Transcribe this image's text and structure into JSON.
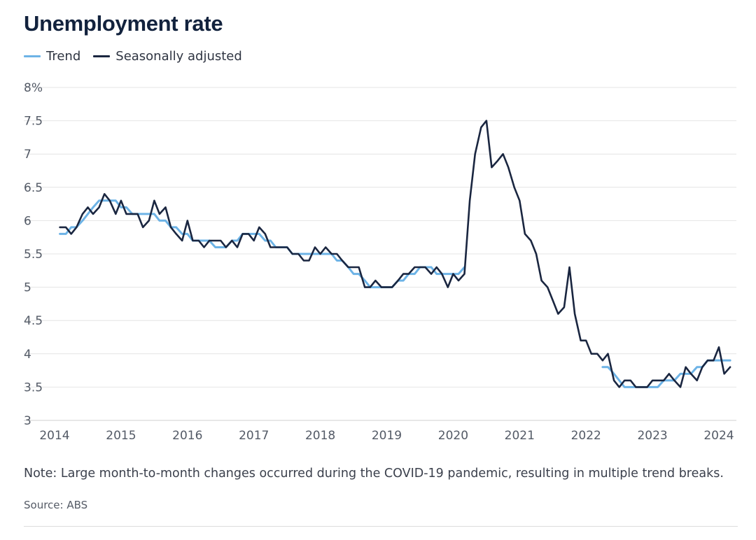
{
  "title": "Unemployment rate",
  "legend": [
    {
      "label": "Trend",
      "color": "#6db3e6"
    },
    {
      "label": "Seasonally adjusted",
      "color": "#1a2640"
    }
  ],
  "note": "Note: Large month-to-month changes occurred during the COVID-19 pandemic, resulting in multiple trend breaks.",
  "source": "Source: ABS",
  "colors": {
    "trend": "#6db3e6",
    "seasonal": "#1a2640",
    "grid": "#e4e4e4",
    "axis": "#cfcfcf"
  },
  "chart_data": {
    "type": "line",
    "title": "Unemployment rate",
    "xlabel": "",
    "ylabel": "",
    "ylim": [
      3,
      8
    ],
    "y_ticks": [
      3,
      3.5,
      4,
      4.5,
      5,
      5.5,
      6,
      6.5,
      7,
      7.5,
      8
    ],
    "y_tick_labels": [
      "3",
      "3.5",
      "4",
      "4.5",
      "5",
      "5.5",
      "6",
      "6.5",
      "7",
      "7.5",
      "8%"
    ],
    "x_ticks": [
      2014,
      2015,
      2016,
      2017,
      2018,
      2019,
      2020,
      2021,
      2022,
      2023,
      2024
    ],
    "x_tick_labels": [
      "2014",
      "2015",
      "2016",
      "2017",
      "2018",
      "2019",
      "2020",
      "2021",
      "2022",
      "2023",
      "2024"
    ],
    "xlim": [
      2014.0,
      2024.3
    ],
    "grid": true,
    "legend_position": "top-left",
    "series": [
      {
        "name": "Seasonally adjusted",
        "color": "#1a2640",
        "points": [
          [
            2014.08,
            5.9
          ],
          [
            2014.17,
            5.9
          ],
          [
            2014.25,
            5.8
          ],
          [
            2014.33,
            5.9
          ],
          [
            2014.42,
            6.1
          ],
          [
            2014.5,
            6.2
          ],
          [
            2014.58,
            6.1
          ],
          [
            2014.67,
            6.2
          ],
          [
            2014.75,
            6.4
          ],
          [
            2014.83,
            6.3
          ],
          [
            2014.92,
            6.1
          ],
          [
            2015.0,
            6.3
          ],
          [
            2015.08,
            6.1
          ],
          [
            2015.17,
            6.1
          ],
          [
            2015.25,
            6.1
          ],
          [
            2015.33,
            5.9
          ],
          [
            2015.42,
            6.0
          ],
          [
            2015.5,
            6.3
          ],
          [
            2015.58,
            6.1
          ],
          [
            2015.67,
            6.2
          ],
          [
            2015.75,
            5.9
          ],
          [
            2015.83,
            5.8
          ],
          [
            2015.92,
            5.7
          ],
          [
            2016.0,
            6.0
          ],
          [
            2016.08,
            5.7
          ],
          [
            2016.17,
            5.7
          ],
          [
            2016.25,
            5.6
          ],
          [
            2016.33,
            5.7
          ],
          [
            2016.42,
            5.7
          ],
          [
            2016.5,
            5.7
          ],
          [
            2016.58,
            5.6
          ],
          [
            2016.67,
            5.7
          ],
          [
            2016.75,
            5.6
          ],
          [
            2016.83,
            5.8
          ],
          [
            2016.92,
            5.8
          ],
          [
            2017.0,
            5.7
          ],
          [
            2017.08,
            5.9
          ],
          [
            2017.17,
            5.8
          ],
          [
            2017.25,
            5.6
          ],
          [
            2017.33,
            5.6
          ],
          [
            2017.42,
            5.6
          ],
          [
            2017.5,
            5.6
          ],
          [
            2017.58,
            5.5
          ],
          [
            2017.67,
            5.5
          ],
          [
            2017.75,
            5.4
          ],
          [
            2017.83,
            5.4
          ],
          [
            2017.92,
            5.6
          ],
          [
            2018.0,
            5.5
          ],
          [
            2018.08,
            5.6
          ],
          [
            2018.17,
            5.5
          ],
          [
            2018.25,
            5.5
          ],
          [
            2018.33,
            5.4
          ],
          [
            2018.42,
            5.3
          ],
          [
            2018.5,
            5.3
          ],
          [
            2018.58,
            5.3
          ],
          [
            2018.67,
            5.0
          ],
          [
            2018.75,
            5.0
          ],
          [
            2018.83,
            5.1
          ],
          [
            2018.92,
            5.0
          ],
          [
            2019.0,
            5.0
          ],
          [
            2019.08,
            5.0
          ],
          [
            2019.17,
            5.1
          ],
          [
            2019.25,
            5.2
          ],
          [
            2019.33,
            5.2
          ],
          [
            2019.42,
            5.3
          ],
          [
            2019.5,
            5.3
          ],
          [
            2019.58,
            5.3
          ],
          [
            2019.67,
            5.2
          ],
          [
            2019.75,
            5.3
          ],
          [
            2019.83,
            5.2
          ],
          [
            2019.92,
            5.0
          ],
          [
            2020.0,
            5.2
          ],
          [
            2020.08,
            5.1
          ],
          [
            2020.17,
            5.2
          ],
          [
            2020.25,
            6.3
          ],
          [
            2020.33,
            7.0
          ],
          [
            2020.42,
            7.4
          ],
          [
            2020.5,
            7.5
          ],
          [
            2020.58,
            6.8
          ],
          [
            2020.67,
            6.9
          ],
          [
            2020.75,
            7.0
          ],
          [
            2020.83,
            6.8
          ],
          [
            2020.92,
            6.5
          ],
          [
            2021.0,
            6.3
          ],
          [
            2021.08,
            5.8
          ],
          [
            2021.17,
            5.7
          ],
          [
            2021.25,
            5.5
          ],
          [
            2021.33,
            5.1
          ],
          [
            2021.42,
            5.0
          ],
          [
            2021.5,
            4.8
          ],
          [
            2021.58,
            4.6
          ],
          [
            2021.67,
            4.7
          ],
          [
            2021.75,
            5.3
          ],
          [
            2021.83,
            4.6
          ],
          [
            2021.92,
            4.2
          ],
          [
            2022.0,
            4.2
          ],
          [
            2022.08,
            4.0
          ],
          [
            2022.17,
            4.0
          ],
          [
            2022.25,
            3.9
          ],
          [
            2022.33,
            4.0
          ],
          [
            2022.42,
            3.6
          ],
          [
            2022.5,
            3.5
          ],
          [
            2022.58,
            3.6
          ],
          [
            2022.67,
            3.6
          ],
          [
            2022.75,
            3.5
          ],
          [
            2022.83,
            3.5
          ],
          [
            2022.92,
            3.5
          ],
          [
            2023.0,
            3.6
          ],
          [
            2023.08,
            3.6
          ],
          [
            2023.17,
            3.6
          ],
          [
            2023.25,
            3.7
          ],
          [
            2023.33,
            3.6
          ],
          [
            2023.42,
            3.5
          ],
          [
            2023.5,
            3.8
          ],
          [
            2023.58,
            3.7
          ],
          [
            2023.67,
            3.6
          ],
          [
            2023.75,
            3.8
          ],
          [
            2023.83,
            3.9
          ],
          [
            2023.92,
            3.9
          ],
          [
            2024.0,
            4.1
          ],
          [
            2024.08,
            3.7
          ],
          [
            2024.17,
            3.8
          ]
        ]
      },
      {
        "name": "Trend",
        "color": "#6db3e6",
        "segments": [
          [
            [
              2014.08,
              5.8
            ],
            [
              2014.17,
              5.8
            ],
            [
              2014.25,
              5.9
            ],
            [
              2014.33,
              5.9
            ],
            [
              2014.42,
              6.0
            ],
            [
              2014.5,
              6.1
            ],
            [
              2014.58,
              6.2
            ],
            [
              2014.67,
              6.3
            ],
            [
              2014.75,
              6.3
            ],
            [
              2014.83,
              6.3
            ],
            [
              2014.92,
              6.3
            ],
            [
              2015.0,
              6.2
            ],
            [
              2015.08,
              6.2
            ],
            [
              2015.17,
              6.1
            ],
            [
              2015.25,
              6.1
            ],
            [
              2015.33,
              6.1
            ],
            [
              2015.42,
              6.1
            ],
            [
              2015.5,
              6.1
            ],
            [
              2015.58,
              6.0
            ],
            [
              2015.67,
              6.0
            ],
            [
              2015.75,
              5.9
            ],
            [
              2015.83,
              5.9
            ],
            [
              2015.92,
              5.8
            ],
            [
              2016.0,
              5.8
            ],
            [
              2016.08,
              5.7
            ],
            [
              2016.17,
              5.7
            ],
            [
              2016.25,
              5.7
            ],
            [
              2016.33,
              5.7
            ],
            [
              2016.42,
              5.6
            ],
            [
              2016.5,
              5.6
            ],
            [
              2016.58,
              5.6
            ],
            [
              2016.67,
              5.7
            ],
            [
              2016.75,
              5.7
            ],
            [
              2016.83,
              5.8
            ],
            [
              2016.92,
              5.8
            ],
            [
              2017.0,
              5.8
            ],
            [
              2017.08,
              5.8
            ],
            [
              2017.17,
              5.7
            ],
            [
              2017.25,
              5.7
            ],
            [
              2017.33,
              5.6
            ],
            [
              2017.42,
              5.6
            ],
            [
              2017.5,
              5.6
            ],
            [
              2017.58,
              5.5
            ],
            [
              2017.67,
              5.5
            ],
            [
              2017.75,
              5.5
            ],
            [
              2017.83,
              5.5
            ],
            [
              2017.92,
              5.5
            ],
            [
              2018.0,
              5.5
            ],
            [
              2018.08,
              5.5
            ],
            [
              2018.17,
              5.5
            ],
            [
              2018.25,
              5.4
            ],
            [
              2018.33,
              5.4
            ],
            [
              2018.42,
              5.3
            ],
            [
              2018.5,
              5.2
            ],
            [
              2018.58,
              5.2
            ],
            [
              2018.67,
              5.1
            ],
            [
              2018.75,
              5.0
            ],
            [
              2018.83,
              5.0
            ],
            [
              2018.92,
              5.0
            ],
            [
              2019.0,
              5.0
            ],
            [
              2019.08,
              5.0
            ],
            [
              2019.17,
              5.1
            ],
            [
              2019.25,
              5.1
            ],
            [
              2019.33,
              5.2
            ],
            [
              2019.42,
              5.2
            ],
            [
              2019.5,
              5.3
            ],
            [
              2019.58,
              5.3
            ],
            [
              2019.67,
              5.3
            ],
            [
              2019.75,
              5.2
            ],
            [
              2019.83,
              5.2
            ],
            [
              2019.92,
              5.2
            ],
            [
              2020.0,
              5.2
            ],
            [
              2020.08,
              5.2
            ],
            [
              2020.17,
              5.3
            ]
          ],
          [
            [
              2022.25,
              3.8
            ],
            [
              2022.33,
              3.8
            ],
            [
              2022.42,
              3.7
            ],
            [
              2022.5,
              3.6
            ],
            [
              2022.58,
              3.5
            ],
            [
              2022.67,
              3.5
            ],
            [
              2022.75,
              3.5
            ],
            [
              2022.83,
              3.5
            ],
            [
              2022.92,
              3.5
            ],
            [
              2023.0,
              3.5
            ],
            [
              2023.08,
              3.5
            ],
            [
              2023.17,
              3.6
            ],
            [
              2023.25,
              3.6
            ],
            [
              2023.33,
              3.6
            ],
            [
              2023.42,
              3.7
            ],
            [
              2023.5,
              3.7
            ],
            [
              2023.58,
              3.7
            ],
            [
              2023.67,
              3.8
            ],
            [
              2023.75,
              3.8
            ],
            [
              2023.83,
              3.9
            ],
            [
              2023.92,
              3.9
            ],
            [
              2024.0,
              3.9
            ],
            [
              2024.08,
              3.9
            ],
            [
              2024.17,
              3.9
            ]
          ]
        ]
      }
    ]
  }
}
